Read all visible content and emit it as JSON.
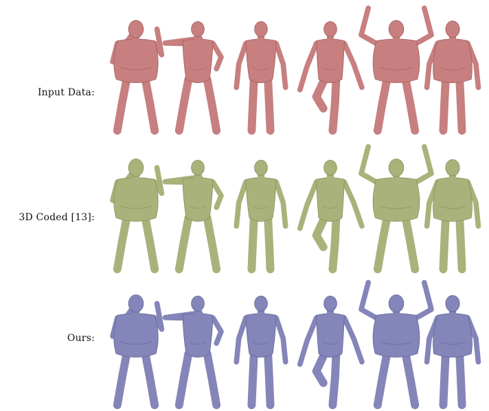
{
  "figure": {
    "rows": [
      {
        "label": "Input Data:",
        "color": "#c77f7f",
        "shade": "#a45c5c"
      },
      {
        "label": "3D Coded [13]:",
        "color": "#a9b27a",
        "shade": "#858e56"
      },
      {
        "label": "Ours:",
        "color": "#8485b8",
        "shade": "#62639a"
      }
    ],
    "poses": [
      "obese-hands-to-face",
      "arms-crossed",
      "a-pose-standing",
      "one-leg-raised",
      "obese-arms-raised",
      "obese-female-standing"
    ]
  }
}
